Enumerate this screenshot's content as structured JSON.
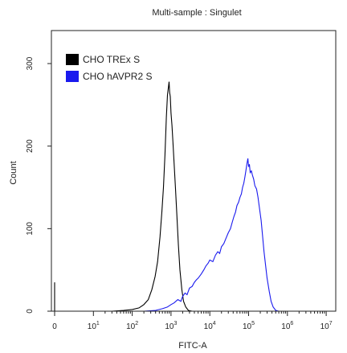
{
  "chart_data": {
    "type": "line",
    "title": "Multi-sample : Singulet",
    "xlabel": "FITC-A",
    "ylabel": "Count",
    "x_scale": "biexponential",
    "xlim": [
      0,
      10000000
    ],
    "ylim": [
      0,
      340
    ],
    "x_ticks": [
      {
        "value": 0,
        "label": "0"
      },
      {
        "value": 10,
        "label": "10",
        "exp": "1"
      },
      {
        "value": 100,
        "label": "10",
        "exp": "2"
      },
      {
        "value": 1000,
        "label": "10",
        "exp": "3"
      },
      {
        "value": 10000,
        "label": "10",
        "exp": "4"
      },
      {
        "value": 100000,
        "label": "10",
        "exp": "5"
      },
      {
        "value": 1000000,
        "label": "10",
        "exp": "6"
      },
      {
        "value": 10000000,
        "label": "10",
        "exp": "7"
      }
    ],
    "y_ticks": [
      0,
      100,
      200,
      300
    ],
    "legend_position": "top-left",
    "series": [
      {
        "name": "CHO TREx S",
        "color": "#000000",
        "points": [
          [
            0,
            35
          ],
          [
            0,
            0
          ],
          [
            10,
            0
          ],
          [
            30,
            0
          ],
          [
            60,
            1
          ],
          [
            100,
            2
          ],
          [
            150,
            4
          ],
          [
            200,
            8
          ],
          [
            260,
            14
          ],
          [
            320,
            26
          ],
          [
            390,
            42
          ],
          [
            450,
            60
          ],
          [
            520,
            90
          ],
          [
            580,
            120
          ],
          [
            640,
            150
          ],
          [
            700,
            190
          ],
          [
            760,
            235
          ],
          [
            810,
            262
          ],
          [
            850,
            270
          ],
          [
            890,
            278
          ],
          [
            920,
            265
          ],
          [
            960,
            260
          ],
          [
            1000,
            240
          ],
          [
            1060,
            225
          ],
          [
            1120,
            205
          ],
          [
            1200,
            180
          ],
          [
            1300,
            150
          ],
          [
            1400,
            120
          ],
          [
            1550,
            80
          ],
          [
            1700,
            50
          ],
          [
            1900,
            26
          ],
          [
            2100,
            12
          ],
          [
            2400,
            5
          ],
          [
            2800,
            1
          ],
          [
            3500,
            0
          ],
          [
            10000000,
            0
          ]
        ]
      },
      {
        "name": "CHO hAVPR2 S",
        "color": "#1a1aee",
        "points": [
          [
            0,
            0
          ],
          [
            200,
            0
          ],
          [
            400,
            1
          ],
          [
            600,
            3
          ],
          [
            800,
            5
          ],
          [
            1000,
            8
          ],
          [
            1200,
            10
          ],
          [
            1500,
            14
          ],
          [
            1800,
            12
          ],
          [
            2000,
            18
          ],
          [
            2300,
            22
          ],
          [
            2600,
            20
          ],
          [
            3000,
            28
          ],
          [
            3500,
            30
          ],
          [
            4000,
            35
          ],
          [
            4500,
            38
          ],
          [
            5000,
            40
          ],
          [
            6000,
            45
          ],
          [
            7000,
            50
          ],
          [
            8000,
            55
          ],
          [
            9000,
            58
          ],
          [
            10000,
            62
          ],
          [
            12000,
            60
          ],
          [
            14000,
            68
          ],
          [
            16000,
            72
          ],
          [
            18000,
            70
          ],
          [
            20000,
            78
          ],
          [
            23000,
            82
          ],
          [
            26000,
            88
          ],
          [
            30000,
            95
          ],
          [
            34000,
            100
          ],
          [
            38000,
            108
          ],
          [
            42000,
            115
          ],
          [
            46000,
            120
          ],
          [
            50000,
            128
          ],
          [
            55000,
            132
          ],
          [
            60000,
            138
          ],
          [
            65000,
            142
          ],
          [
            70000,
            150
          ],
          [
            75000,
            155
          ],
          [
            80000,
            162
          ],
          [
            85000,
            170
          ],
          [
            90000,
            178
          ],
          [
            96000,
            185
          ],
          [
            100000,
            175
          ],
          [
            105000,
            178
          ],
          [
            110000,
            168
          ],
          [
            118000,
            170
          ],
          [
            125000,
            165
          ],
          [
            135000,
            160
          ],
          [
            145000,
            152
          ],
          [
            160000,
            148
          ],
          [
            175000,
            138
          ],
          [
            190000,
            125
          ],
          [
            210000,
            110
          ],
          [
            230000,
            90
          ],
          [
            250000,
            72
          ],
          [
            275000,
            55
          ],
          [
            300000,
            40
          ],
          [
            340000,
            24
          ],
          [
            380000,
            12
          ],
          [
            430000,
            5
          ],
          [
            500000,
            1
          ],
          [
            600000,
            0
          ],
          [
            10000000,
            0
          ]
        ]
      }
    ]
  }
}
